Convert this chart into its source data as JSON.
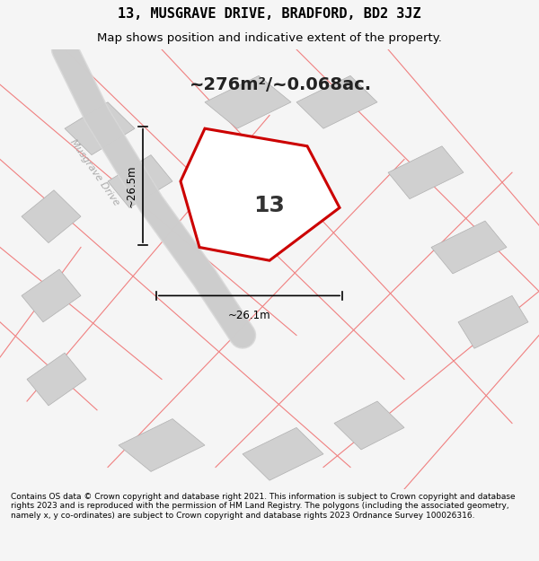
{
  "title": "13, MUSGRAVE DRIVE, BRADFORD, BD2 3JZ",
  "subtitle": "Map shows position and indicative extent of the property.",
  "area_text": "~276m²/~0.068ac.",
  "plot_number": "13",
  "dim_vertical": "~26.5m",
  "dim_horizontal": "~26.1m",
  "road_label": "Musgrave Drive",
  "road_label2": "Musgrave Drive",
  "footer": "Contains OS data © Crown copyright and database right 2021. This information is subject to Crown copyright and database rights 2023 and is reproduced with the permission of HM Land Registry. The polygons (including the associated geometry, namely x, y co-ordinates) are subject to Crown copyright and database rights 2023 Ordnance Survey 100026316.",
  "bg_color": "#f0f0f0",
  "map_bg": "#e8e8e8",
  "plot_color": "#cc0000",
  "plot_fill": "#ffffff",
  "road_color": "#cccccc",
  "building_color": "#d0d0d0",
  "dim_line_color": "#000000",
  "title_color": "#000000",
  "footer_color": "#000000",
  "road_line_color": "#f08080",
  "figsize": [
    6.0,
    6.25
  ],
  "dpi": 100
}
